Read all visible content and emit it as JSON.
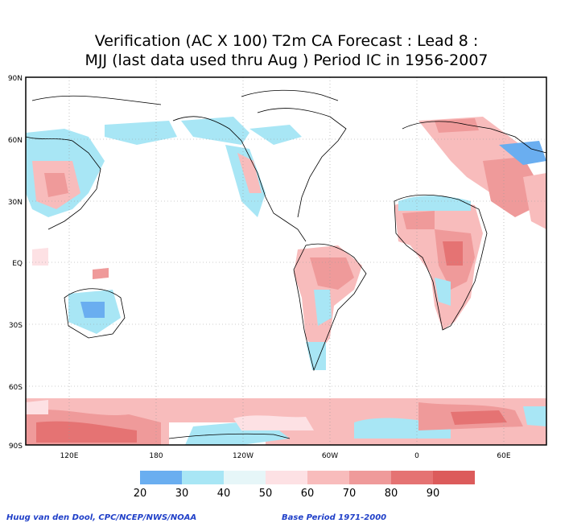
{
  "title": {
    "line1": "Verification (AC X 100) T2m CA Forecast : Lead 8 :",
    "line2": "MJJ (last data used thru Aug ) Period IC in 1956-2007"
  },
  "axes": {
    "lat_labels": [
      "90N",
      "60N",
      "30N",
      "EQ",
      "30S",
      "60S",
      "90S"
    ],
    "lon_labels": [
      "120E",
      "180",
      "120W",
      "60W",
      "0",
      "60E"
    ]
  },
  "legend": {
    "labels": [
      "20",
      "30",
      "40",
      "50",
      "60",
      "70",
      "80",
      "90"
    ],
    "colors": [
      "#6aaef0",
      "#a8e6f5",
      "#e6f6f8",
      "#fde1e4",
      "#f8bcbc",
      "#ef9a9a",
      "#e57373",
      "#dc5b5b",
      "#b0b0b0"
    ]
  },
  "credits": {
    "left": "Huug van den Dool, CPC/NCEP/NWS/NOAA",
    "right": "Base Period 1971-2000"
  }
}
